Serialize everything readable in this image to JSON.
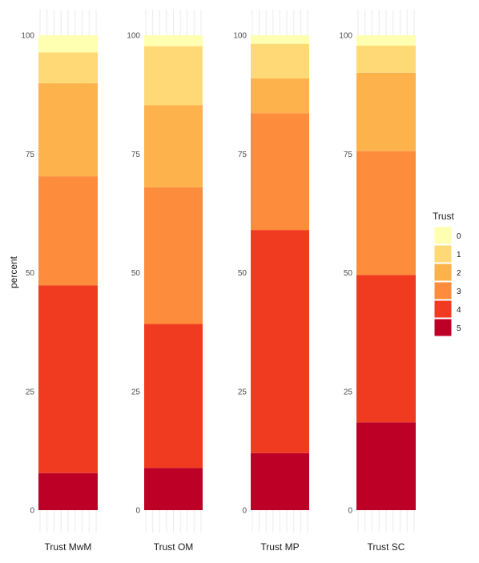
{
  "chart_data": {
    "type": "bar",
    "stacked": true,
    "facets": true,
    "panels": [
      {
        "label": "Trust MwM",
        "values": {
          "5": 7.8,
          "4": 39.5,
          "3": 23.0,
          "2": 19.6,
          "1": 6.5,
          "0": 3.6
        }
      },
      {
        "label": "Trust OM",
        "values": {
          "5": 8.9,
          "4": 30.3,
          "3": 28.8,
          "2": 17.3,
          "1": 12.4,
          "0": 2.3
        }
      },
      {
        "label": "Trust MP",
        "values": {
          "5": 12.0,
          "4": 47.0,
          "3": 24.6,
          "2": 7.3,
          "1": 7.3,
          "0": 1.8
        }
      },
      {
        "label": "Trust SC",
        "values": {
          "5": 18.5,
          "4": 31.0,
          "3": 26.1,
          "2": 16.5,
          "1": 5.7,
          "0": 2.2
        }
      }
    ],
    "yticks": [
      0,
      25,
      50,
      75,
      100
    ],
    "ylim": [
      0,
      100
    ],
    "ylabel": "percent",
    "legend": {
      "title": "Trust",
      "position": "right",
      "entries": [
        {
          "key": "0",
          "label": "0",
          "color": "#ffffb2"
        },
        {
          "key": "1",
          "label": "1",
          "color": "#fed976"
        },
        {
          "key": "2",
          "label": "2",
          "color": "#feb24c"
        },
        {
          "key": "3",
          "label": "3",
          "color": "#fd8d3c"
        },
        {
          "key": "4",
          "label": "4",
          "color": "#f03b20"
        },
        {
          "key": "5",
          "label": "5",
          "color": "#bd0026"
        }
      ]
    },
    "stack_order_bottom_to_top": [
      "5",
      "4",
      "3",
      "2",
      "1",
      "0"
    ]
  }
}
